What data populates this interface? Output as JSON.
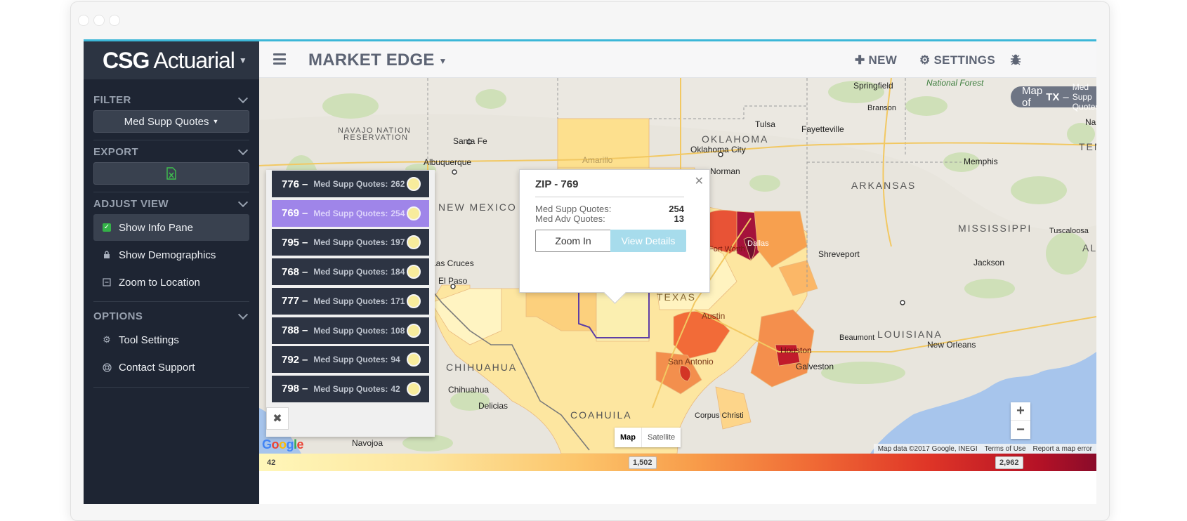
{
  "brand": {
    "bold": "CSG",
    "rest": "Actuarial"
  },
  "header": {
    "title": "MARKET EDGE",
    "new_label": "NEW",
    "settings_label": "SETTINGS"
  },
  "sidebar": {
    "filter": {
      "title": "FILTER",
      "value": "Med Supp Quotes"
    },
    "export": {
      "title": "EXPORT",
      "file_icon": "excel-file-icon"
    },
    "adjust": {
      "title": "ADJUST VIEW",
      "items": [
        {
          "label": "Show Info Pane",
          "checked": true
        },
        {
          "label": "Show Demographics",
          "icon": "lock-icon"
        },
        {
          "label": "Zoom to Location",
          "icon": "minus-square-icon"
        }
      ]
    },
    "options": {
      "title": "OPTIONS",
      "items": [
        {
          "label": "Tool Settings",
          "icon": "gear-icon"
        },
        {
          "label": "Contact Support",
          "icon": "life-ring-icon"
        }
      ]
    }
  },
  "map": {
    "title_prefix": "Map of",
    "title_state": "TX",
    "title_dash": "–",
    "title_metric": "Med Supp Quotes",
    "labels": {
      "navajo": "NAVAJO NATION",
      "reservation": "RESERVATION",
      "santa_fe": "Santa Fe",
      "albuquerque": "Albuquerque",
      "new_mexico": "NEW MEXICO",
      "las_cruces": "Las Cruces",
      "el_paso": "El Paso",
      "chihuahua_state": "CHIHUAHUA",
      "chihuahua": "Chihuahua",
      "delicias": "Delicias",
      "coahuila": "COAHUILA",
      "navojoa": "Navojoa",
      "amarillo": "Amarillo",
      "oklahoma": "OKLAHOMA",
      "oklahoma_city": "Oklahoma City",
      "norman": "Norman",
      "tulsa": "Tulsa",
      "springfield": "Springfield",
      "national_forest": "National Forest",
      "branson": "Branson",
      "fayetteville": "Fayetteville",
      "arkansas": "ARKANSAS",
      "memphis": "Memphis",
      "mississippi": "MISSISSIPPI",
      "tuscaloosa": "Tuscaloosa",
      "shreveport": "Shreveport",
      "jackson": "Jackson",
      "texas": "TEXAS",
      "austin": "Austin",
      "san_antonio": "San Antonio",
      "houston": "Houston",
      "galveston": "Galveston",
      "beaumont": "Beaumont",
      "louisiana": "LOUISIANA",
      "new_orleans": "New Orleans",
      "corpus_christi": "Corpus Christi",
      "dallas": "Dallas",
      "fort_worth": "Fort Worth",
      "tenn": "TEN",
      "na": "Na",
      "al": "AL"
    },
    "info_items": [
      {
        "zip": "776",
        "dash": "–",
        "label": "Med Supp Quotes:",
        "value": "262"
      },
      {
        "zip": "769",
        "dash": "–",
        "label": "Med Supp Quotes:",
        "value": "254",
        "selected": true
      },
      {
        "zip": "795",
        "dash": "–",
        "label": "Med Supp Quotes:",
        "value": "197"
      },
      {
        "zip": "768",
        "dash": "–",
        "label": "Med Supp Quotes:",
        "value": "184"
      },
      {
        "zip": "777",
        "dash": "–",
        "label": "Med Supp Quotes:",
        "value": "171"
      },
      {
        "zip": "788",
        "dash": "–",
        "label": "Med Supp Quotes:",
        "value": "108"
      },
      {
        "zip": "792",
        "dash": "–",
        "label": "Med Supp Quotes:",
        "value": "94"
      },
      {
        "zip": "798",
        "dash": "–",
        "label": "Med Supp Quotes:",
        "value": "42"
      }
    ],
    "popup": {
      "title": "ZIP - 769",
      "rows": [
        {
          "label": "Med Supp Quotes:",
          "value": "254"
        },
        {
          "label": "Med Adv Quotes:",
          "value": "13"
        }
      ],
      "zoom_label": "Zoom In",
      "details_label": "View Details"
    },
    "map_type": {
      "map": "Map",
      "satellite": "Satellite"
    },
    "google": "Google",
    "attribution": [
      "Map data ©2017 Google, INEGI",
      "Terms of Use",
      "Report a map error"
    ]
  },
  "legend": {
    "min": "42",
    "mid": "1,502",
    "max": "2,962"
  },
  "colors": {
    "accent": "#3cb7d8",
    "sidebar": "#1e2533",
    "selected": "#9f85e9"
  }
}
